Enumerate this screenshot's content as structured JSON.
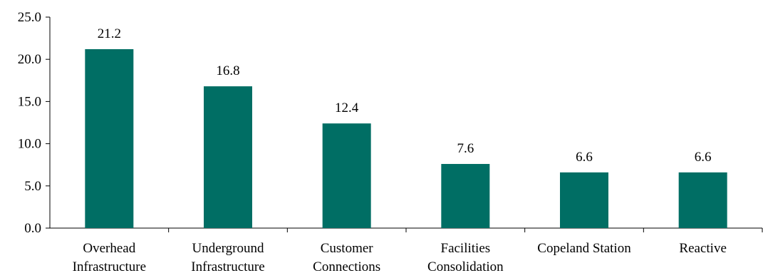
{
  "chart_data": {
    "type": "bar",
    "categories": [
      [
        "Overhead",
        "Infrastructure"
      ],
      [
        "Underground",
        "Infrastructure"
      ],
      [
        "Customer",
        "Connections"
      ],
      [
        "Facilities",
        "Consolidation"
      ],
      [
        "Copeland Station"
      ],
      [
        "Reactive"
      ]
    ],
    "values": [
      21.2,
      16.8,
      12.4,
      7.6,
      6.6,
      6.6
    ],
    "data_labels": [
      "21.2",
      "16.8",
      "12.4",
      "7.6",
      "6.6",
      "6.6"
    ],
    "y_ticks": [
      "0.0",
      "5.0",
      "10.0",
      "15.0",
      "20.0",
      "25.0"
    ],
    "ylim": [
      0,
      25
    ],
    "title": "",
    "xlabel": "",
    "ylabel": "",
    "grid": false,
    "bar_color": "#006e64"
  }
}
